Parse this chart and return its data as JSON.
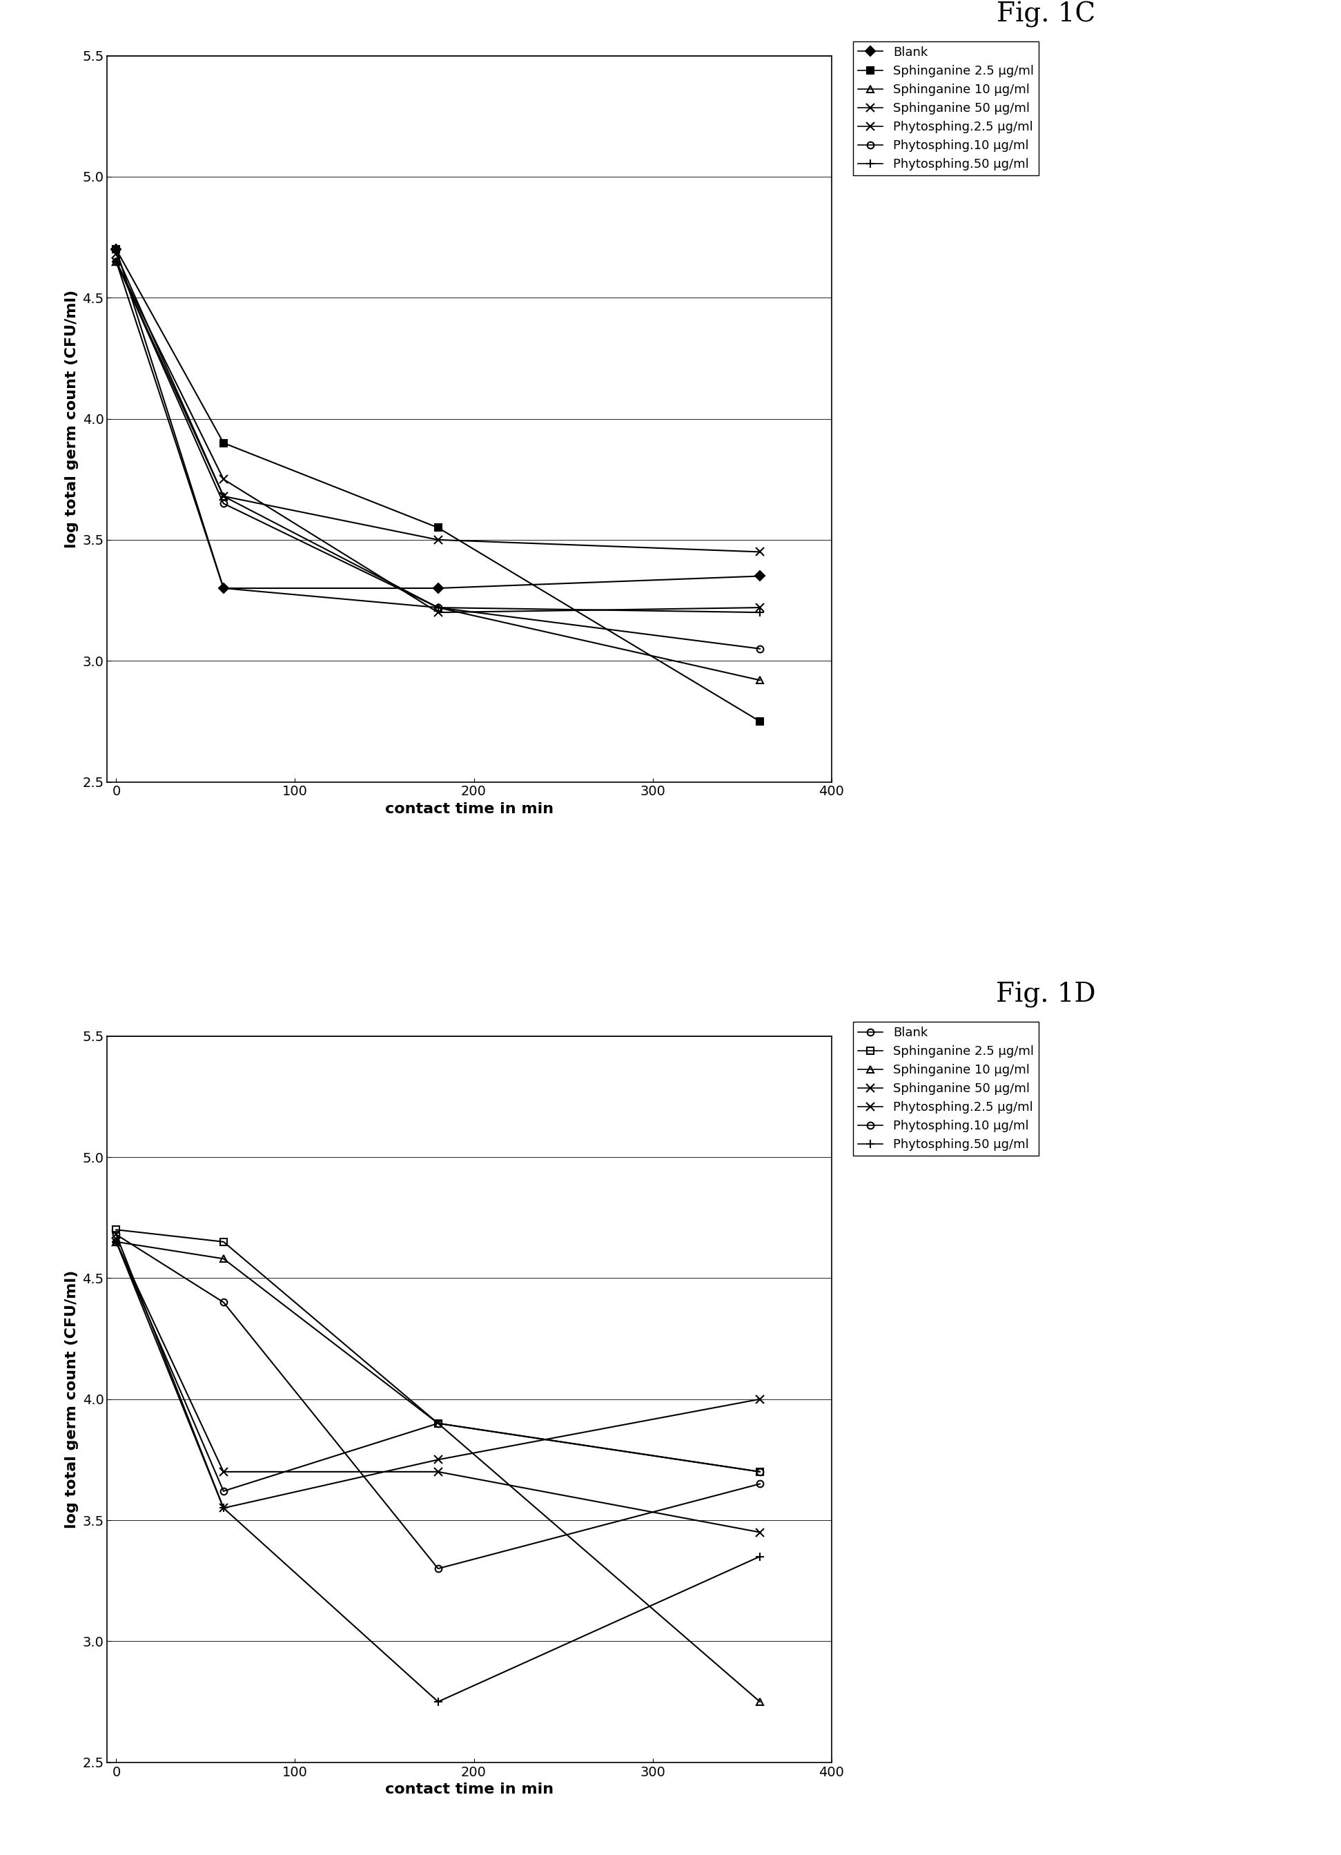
{
  "fig1C": {
    "title": "Fig. 1C",
    "xlabel": "contact time in min",
    "ylabel": "log total germ count (CFU/ml)",
    "xlim": [
      -5,
      400
    ],
    "ylim": [
      2.5,
      5.5
    ],
    "xticks": [
      0,
      100,
      200,
      300,
      400
    ],
    "yticks": [
      2.5,
      3.0,
      3.5,
      4.0,
      4.5,
      5.0,
      5.5
    ],
    "series": [
      {
        "label": "Blank",
        "x": [
          0,
          60,
          180,
          360
        ],
        "y": [
          4.7,
          3.3,
          3.3,
          3.35
        ],
        "marker": "D",
        "markersize": 7,
        "fillstyle": "full",
        "color": "#000000",
        "linewidth": 1.5,
        "linestyle": "-"
      },
      {
        "label": "Sphinganine 2.5 µg/ml",
        "x": [
          0,
          60,
          180,
          360
        ],
        "y": [
          4.7,
          3.9,
          3.55,
          2.75
        ],
        "marker": "s",
        "markersize": 7,
        "fillstyle": "full",
        "color": "#000000",
        "linewidth": 1.5,
        "linestyle": "-"
      },
      {
        "label": "Sphinganine 10 µg/ml",
        "x": [
          0,
          60,
          180,
          360
        ],
        "y": [
          4.65,
          3.68,
          3.22,
          2.92
        ],
        "marker": "^",
        "markersize": 7,
        "fillstyle": "none",
        "color": "#000000",
        "linewidth": 1.5,
        "linestyle": "-"
      },
      {
        "label": "Sphinganine 50 µg/ml",
        "x": [
          0,
          60,
          180,
          360
        ],
        "y": [
          4.65,
          3.75,
          3.2,
          3.22
        ],
        "marker": "x",
        "markersize": 8,
        "fillstyle": "full",
        "color": "#000000",
        "linewidth": 1.5,
        "linestyle": "-"
      },
      {
        "label": "Phytosphing.2.5 µg/ml",
        "x": [
          0,
          60,
          180,
          360
        ],
        "y": [
          4.68,
          3.68,
          3.5,
          3.45
        ],
        "marker": "x",
        "markersize": 8,
        "fillstyle": "full",
        "color": "#000000",
        "linewidth": 1.5,
        "linestyle": "-",
        "extra_marker": "*"
      },
      {
        "label": "Phytosphing.10 µg/ml",
        "x": [
          0,
          60,
          180,
          360
        ],
        "y": [
          4.65,
          3.65,
          3.22,
          3.05
        ],
        "marker": "o",
        "markersize": 7,
        "fillstyle": "none",
        "color": "#000000",
        "linewidth": 1.5,
        "linestyle": "-"
      },
      {
        "label": "Phytosphing.50 µg/ml",
        "x": [
          0,
          60,
          180,
          360
        ],
        "y": [
          4.65,
          3.3,
          3.22,
          3.2
        ],
        "marker": "+",
        "markersize": 9,
        "fillstyle": "full",
        "color": "#000000",
        "linewidth": 1.5,
        "linestyle": "-"
      }
    ]
  },
  "fig1D": {
    "title": "Fig. 1D",
    "xlabel": "contact time in min",
    "ylabel": "log total germ count (CFU/ml)",
    "xlim": [
      -5,
      400
    ],
    "ylim": [
      2.5,
      5.5
    ],
    "xticks": [
      0,
      100,
      200,
      300,
      400
    ],
    "yticks": [
      2.5,
      3.0,
      3.5,
      4.0,
      4.5,
      5.0,
      5.5
    ],
    "series": [
      {
        "label": "Blank",
        "x": [
          0,
          60,
          180,
          360
        ],
        "y": [
          4.68,
          4.4,
          3.3,
          3.65
        ],
        "marker": "o",
        "markersize": 7,
        "fillstyle": "none",
        "color": "#000000",
        "linewidth": 1.5,
        "linestyle": "-"
      },
      {
        "label": "Sphinganine 2.5 µg/ml",
        "x": [
          0,
          60,
          180,
          360
        ],
        "y": [
          4.7,
          4.65,
          3.9,
          3.7
        ],
        "marker": "s",
        "markersize": 7,
        "fillstyle": "none",
        "color": "#000000",
        "linewidth": 1.5,
        "linestyle": "-"
      },
      {
        "label": "Sphinganine 10 µg/ml",
        "x": [
          0,
          60,
          180,
          360
        ],
        "y": [
          4.65,
          4.58,
          3.9,
          2.75
        ],
        "marker": "^",
        "markersize": 7,
        "fillstyle": "none",
        "color": "#000000",
        "linewidth": 1.5,
        "linestyle": "-"
      },
      {
        "label": "Sphinganine 50 µg/ml",
        "x": [
          0,
          60,
          180,
          360
        ],
        "y": [
          4.65,
          3.7,
          3.7,
          3.45
        ],
        "marker": "x",
        "markersize": 8,
        "fillstyle": "full",
        "color": "#000000",
        "linewidth": 1.5,
        "linestyle": "-"
      },
      {
        "label": "Phytosphing.2.5 µg/ml",
        "x": [
          0,
          60,
          180,
          360
        ],
        "y": [
          4.68,
          3.55,
          3.75,
          4.0
        ],
        "marker": "x",
        "markersize": 8,
        "fillstyle": "full",
        "color": "#000000",
        "linewidth": 1.5,
        "linestyle": "-",
        "extra_marker": "*"
      },
      {
        "label": "Phytosphing.10 µg/ml",
        "x": [
          0,
          60,
          180,
          360
        ],
        "y": [
          4.65,
          3.62,
          3.9,
          3.7
        ],
        "marker": "o",
        "markersize": 7,
        "fillstyle": "none",
        "color": "#000000",
        "linewidth": 1.5,
        "linestyle": "-"
      },
      {
        "label": "Phytosphing.50 µg/ml",
        "x": [
          0,
          60,
          180,
          360
        ],
        "y": [
          4.65,
          3.55,
          2.75,
          3.35
        ],
        "marker": "+",
        "markersize": 9,
        "fillstyle": "full",
        "color": "#000000",
        "linewidth": 1.5,
        "linestyle": "-"
      }
    ]
  },
  "background_color": "#ffffff",
  "fig_title_fontsize": 28,
  "axis_label_fontsize": 16,
  "tick_fontsize": 14,
  "legend_fontsize": 13
}
